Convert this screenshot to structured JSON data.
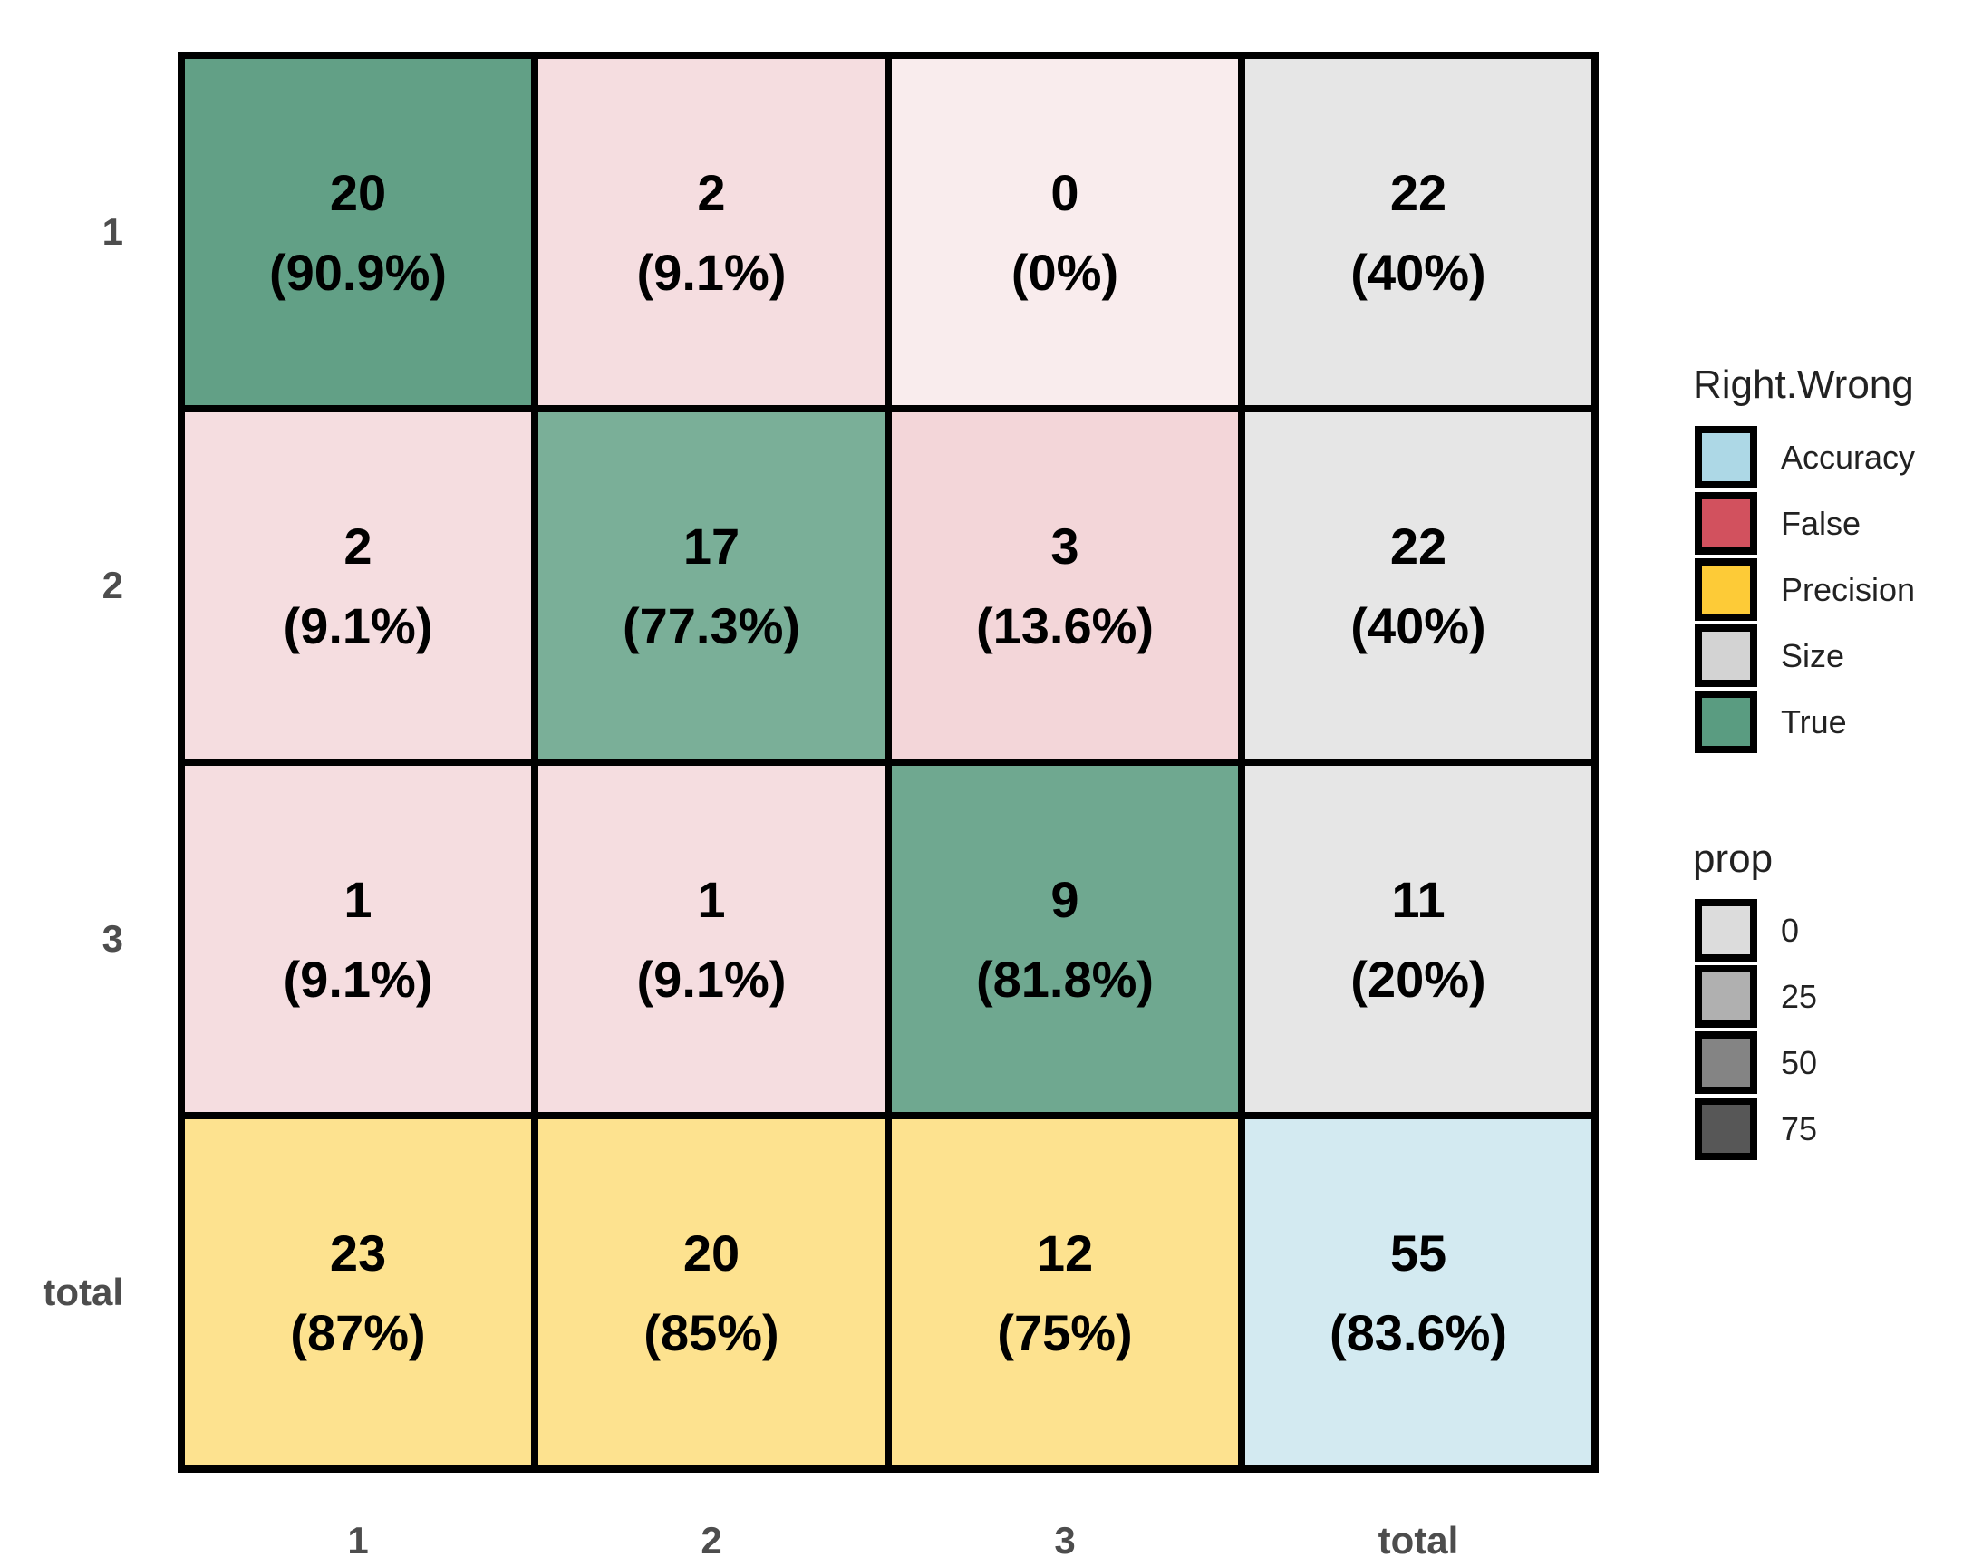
{
  "chart_data": {
    "type": "heatmap",
    "title": "",
    "xlabel": "",
    "ylabel": "",
    "rows": [
      "1",
      "2",
      "3",
      "total"
    ],
    "cols": [
      "1",
      "2",
      "3",
      "total"
    ],
    "cells": [
      [
        {
          "count": "20",
          "pct": "(90.9%)",
          "category": "True",
          "prop": 90.9
        },
        {
          "count": "2",
          "pct": "(9.1%)",
          "category": "False",
          "prop": 9.1
        },
        {
          "count": "0",
          "pct": "(0%)",
          "category": "False",
          "prop": 0
        },
        {
          "count": "22",
          "pct": "(40%)",
          "category": "Size",
          "prop": 40
        }
      ],
      [
        {
          "count": "2",
          "pct": "(9.1%)",
          "category": "False",
          "prop": 9.1
        },
        {
          "count": "17",
          "pct": "(77.3%)",
          "category": "True",
          "prop": 77.3
        },
        {
          "count": "3",
          "pct": "(13.6%)",
          "category": "False",
          "prop": 13.6
        },
        {
          "count": "22",
          "pct": "(40%)",
          "category": "Size",
          "prop": 40
        }
      ],
      [
        {
          "count": "1",
          "pct": "(9.1%)",
          "category": "False",
          "prop": 9.1
        },
        {
          "count": "1",
          "pct": "(9.1%)",
          "category": "False",
          "prop": 9.1
        },
        {
          "count": "9",
          "pct": "(81.8%)",
          "category": "True",
          "prop": 81.8
        },
        {
          "count": "11",
          "pct": "(20%)",
          "category": "Size",
          "prop": 20
        }
      ],
      [
        {
          "count": "23",
          "pct": "(87%)",
          "category": "Precision",
          "prop": 87
        },
        {
          "count": "20",
          "pct": "(85%)",
          "category": "Precision",
          "prop": 85
        },
        {
          "count": "12",
          "pct": "(75%)",
          "category": "Precision",
          "prop": 75
        },
        {
          "count": "55",
          "pct": "(83.6%)",
          "category": "Accuracy",
          "prop": 83.6
        }
      ]
    ],
    "cell_colors": [
      [
        "#62a086",
        "#f5dde0",
        "#f9eced",
        "#e6e6e6"
      ],
      [
        "#f5dde0",
        "#7aaf98",
        "#f3d6d9",
        "#e6e6e6"
      ],
      [
        "#f5dde0",
        "#f5dde0",
        "#6fa890",
        "#e6e6e6"
      ],
      [
        "#fde28f",
        "#fde28f",
        "#fde28f",
        "#d3eaf1"
      ]
    ],
    "legend_category": {
      "title": "Right.Wrong",
      "items": [
        {
          "label": "Accuracy",
          "color": "#add8e6"
        },
        {
          "label": "False",
          "color": "#d2515e"
        },
        {
          "label": "Precision",
          "color": "#fdcb37"
        },
        {
          "label": "Size",
          "color": "#d3d3d3"
        },
        {
          "label": "True",
          "color": "#5a9c81"
        }
      ]
    },
    "legend_prop": {
      "title": "prop",
      "items": [
        {
          "label": "0",
          "color": "#dcdcdc"
        },
        {
          "label": "25",
          "color": "#b0b0b0"
        },
        {
          "label": "50",
          "color": "#848484"
        },
        {
          "label": "75",
          "color": "#575757"
        }
      ]
    },
    "legend_placement": "right",
    "grid": false
  }
}
